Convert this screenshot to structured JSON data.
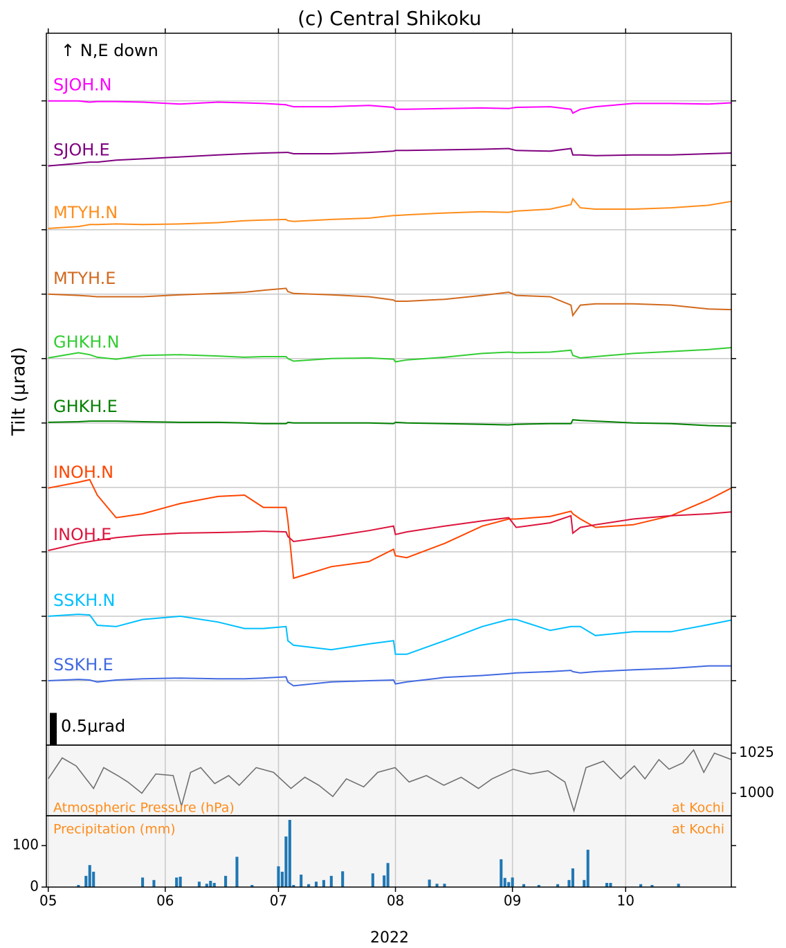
{
  "chart_data": [
    {
      "type": "line",
      "title": "(c) Central Shikoku",
      "annotation": "↑ N,E down",
      "ylabel": "Tilt (μrad)",
      "scale_bar": {
        "value": 0.5,
        "label": "0.5μrad"
      },
      "xlim": [
        -0.5,
        181
      ],
      "ylim": [
        0,
        11.05
      ],
      "yticks": [
        1,
        2,
        3,
        4,
        5,
        6,
        7,
        8,
        9,
        10
      ],
      "grid": true,
      "x": [
        0,
        8,
        11,
        13,
        18,
        25,
        35,
        45,
        52,
        57,
        63,
        63.5,
        65,
        75,
        85,
        91.5,
        92,
        95,
        105,
        115,
        122,
        124,
        133,
        138.5,
        139,
        141,
        145,
        155,
        165,
        175,
        181
      ],
      "series": [
        {
          "name": "SJOH.N",
          "color": "#ff00ff",
          "values": [
            10,
            10,
            9.98,
            9.99,
            9.99,
            9.98,
            9.95,
            9.98,
            9.97,
            9.96,
            9.94,
            9.93,
            9.91,
            9.91,
            9.93,
            9.9,
            9.87,
            9.87,
            9.88,
            9.89,
            9.88,
            9.9,
            9.91,
            9.87,
            9.81,
            9.87,
            9.91,
            9.96,
            9.96,
            9.95,
            9.97
          ]
        },
        {
          "name": "SJOH.E",
          "color": "#800080",
          "values": [
            8.99,
            9.03,
            9.05,
            9.05,
            9.08,
            9.1,
            9.13,
            9.16,
            9.18,
            9.19,
            9.2,
            9.2,
            9.18,
            9.18,
            9.2,
            9.22,
            9.23,
            9.23,
            9.24,
            9.25,
            9.26,
            9.23,
            9.22,
            9.26,
            9.16,
            9.16,
            9.15,
            9.16,
            9.16,
            9.18,
            9.19
          ]
        },
        {
          "name": "MTYH.N",
          "color": "#ff8c1a",
          "values": [
            8.02,
            8.05,
            8.08,
            8.08,
            8.09,
            8.08,
            8.09,
            8.11,
            8.14,
            8.15,
            8.16,
            8.14,
            8.13,
            8.16,
            8.18,
            8.22,
            8.22,
            8.23,
            8.26,
            8.28,
            8.27,
            8.29,
            8.32,
            8.39,
            8.48,
            8.34,
            8.32,
            8.32,
            8.34,
            8.38,
            8.44
          ]
        },
        {
          "name": "MTYH.E",
          "color": "#d2691e",
          "values": [
            7,
            6.98,
            6.97,
            6.96,
            6.96,
            6.96,
            6.99,
            7.01,
            7.03,
            7.06,
            7.09,
            7.04,
            7.01,
            6.99,
            6.96,
            6.91,
            6.89,
            6.89,
            6.92,
            6.98,
            7.03,
            6.98,
            6.96,
            6.83,
            6.67,
            6.83,
            6.85,
            6.85,
            6.83,
            6.77,
            6.76
          ]
        },
        {
          "name": "GHKH.N",
          "color": "#32cd32",
          "values": [
            6.01,
            6.09,
            6.06,
            6.02,
            5.99,
            6.05,
            6.06,
            6.04,
            6.02,
            6.03,
            6.03,
            6,
            5.96,
            6,
            6.01,
            5.99,
            5.95,
            5.98,
            6.02,
            6.08,
            6.1,
            6.09,
            6.1,
            6.13,
            6.05,
            6.01,
            6.03,
            6.08,
            6.11,
            6.14,
            6.17
          ]
        },
        {
          "name": "GHKH.E",
          "color": "#008000",
          "values": [
            5.01,
            5.02,
            5.03,
            5.03,
            5.03,
            5.02,
            5.01,
            5.01,
            5,
            4.99,
            4.99,
            5.01,
            5,
            5,
            5,
            4.99,
            5.01,
            5,
            4.99,
            4.98,
            4.97,
            4.98,
            4.99,
            4.99,
            5.05,
            5.04,
            5.03,
            5,
            4.99,
            4.96,
            4.95
          ]
        },
        {
          "name": "INOH.N",
          "color": "#ff4500",
          "values": [
            3.99,
            4.08,
            4.12,
            3.88,
            3.53,
            3.59,
            3.75,
            3.86,
            3.88,
            3.69,
            3.69,
            3.48,
            2.59,
            2.77,
            2.85,
            3.04,
            2.94,
            2.91,
            3.13,
            3.4,
            3.51,
            3.51,
            3.55,
            3.63,
            3.59,
            3.51,
            3.38,
            3.42,
            3.56,
            3.81,
            3.99
          ]
        },
        {
          "name": "INOH.E",
          "color": "#dc143c",
          "values": [
            3.02,
            3.13,
            3.16,
            3.18,
            3.22,
            3.26,
            3.29,
            3.3,
            3.31,
            3.32,
            3.31,
            3.24,
            3.16,
            3.24,
            3.33,
            3.4,
            3.27,
            3.31,
            3.4,
            3.48,
            3.53,
            3.38,
            3.45,
            3.56,
            3.29,
            3.38,
            3.42,
            3.51,
            3.56,
            3.59,
            3.62
          ]
        },
        {
          "name": "SSKH.N",
          "color": "#00bfff",
          "values": [
            2,
            2.03,
            2.02,
            1.86,
            1.84,
            1.95,
            2,
            1.91,
            1.81,
            1.81,
            1.84,
            1.62,
            1.55,
            1.48,
            1.57,
            1.62,
            1.41,
            1.41,
            1.62,
            1.84,
            1.95,
            1.95,
            1.78,
            1.84,
            1.84,
            1.84,
            1.7,
            1.76,
            1.76,
            1.87,
            1.94
          ]
        },
        {
          "name": "SSKH.E",
          "color": "#4169e1",
          "values": [
            1,
            1.02,
            1.01,
            0.98,
            1.01,
            1.03,
            1.04,
            1.03,
            1.03,
            1.04,
            1.06,
            0.98,
            0.92,
            0.98,
            1,
            1.01,
            0.95,
            0.98,
            1.05,
            1.08,
            1.11,
            1.12,
            1.14,
            1.16,
            1.14,
            1.12,
            1.14,
            1.17,
            1.19,
            1.23,
            1.23
          ]
        }
      ]
    },
    {
      "type": "line",
      "label": "Atmospheric Pressure (hPa)",
      "location": "at Kochi",
      "color": "#707070",
      "ylim": [
        986,
        1030
      ],
      "yticks": [
        1000,
        1025
      ],
      "x": [
        0,
        3.7,
        7.4,
        12,
        14.7,
        18.4,
        21.1,
        24.8,
        28.5,
        33.1,
        35.3,
        37.7,
        40.4,
        44.1,
        47.8,
        50.6,
        55.1,
        59.7,
        64.3,
        68,
        71.7,
        75.4,
        79,
        83.6,
        87.3,
        91.9,
        95.6,
        100.2,
        104.8,
        109.4,
        114,
        117.6,
        123.2,
        127.8,
        132.4,
        136.9,
        139.3,
        142.5,
        147.1,
        151.7,
        155.3,
        158.1,
        161.8,
        164.5,
        168.2,
        171,
        173.7,
        176.5,
        181
      ],
      "values": [
        1009,
        1022,
        1017,
        1003,
        1016,
        1011,
        1007,
        1000,
        1012,
        1011,
        992,
        1013,
        1016,
        1006,
        1011,
        1005,
        1016,
        1013,
        1003,
        1010,
        1005,
        998,
        1009,
        1004,
        1013,
        1016,
        1007,
        1011,
        1005,
        1010,
        1003,
        1009,
        1015,
        1012,
        1014,
        1007,
        989,
        1016,
        1020,
        1009,
        1017,
        1009,
        1021,
        1015,
        1019,
        1027,
        1013,
        1025,
        1021
      ]
    },
    {
      "type": "bar",
      "label": "Precipitation (mm)",
      "location": "at Kochi",
      "color": "#1f77b4",
      "xlabel": "2022",
      "xlim": [
        -0.5,
        181
      ],
      "xticks": [
        {
          "value": 0,
          "label": "05"
        },
        {
          "value": 31,
          "label": "06"
        },
        {
          "value": 61,
          "label": "07"
        },
        {
          "value": 92,
          "label": "08"
        },
        {
          "value": 123,
          "label": "09"
        },
        {
          "value": 153,
          "label": "10"
        }
      ],
      "ylim": [
        0,
        172
      ],
      "yticks": [
        0,
        100
      ],
      "x": [
        8,
        10,
        11,
        12,
        25,
        28,
        34,
        35,
        40,
        42,
        43,
        44,
        47,
        50,
        54,
        61,
        62,
        63,
        64,
        65,
        67,
        69,
        71,
        73,
        75,
        78,
        86,
        89,
        90,
        101,
        103,
        105,
        120,
        121,
        122,
        123,
        126,
        130,
        135,
        138,
        139,
        142,
        143,
        148,
        149,
        157,
        160,
        167
      ],
      "values": [
        5,
        27,
        53,
        37,
        23,
        17,
        23,
        25,
        13,
        8,
        15,
        10,
        27,
        73,
        5,
        50,
        37,
        122,
        162,
        5,
        30,
        7,
        13,
        17,
        27,
        38,
        33,
        28,
        58,
        18,
        8,
        8,
        67,
        22,
        12,
        23,
        7,
        5,
        7,
        17,
        45,
        17,
        90,
        10,
        10,
        7,
        5,
        8
      ]
    }
  ]
}
